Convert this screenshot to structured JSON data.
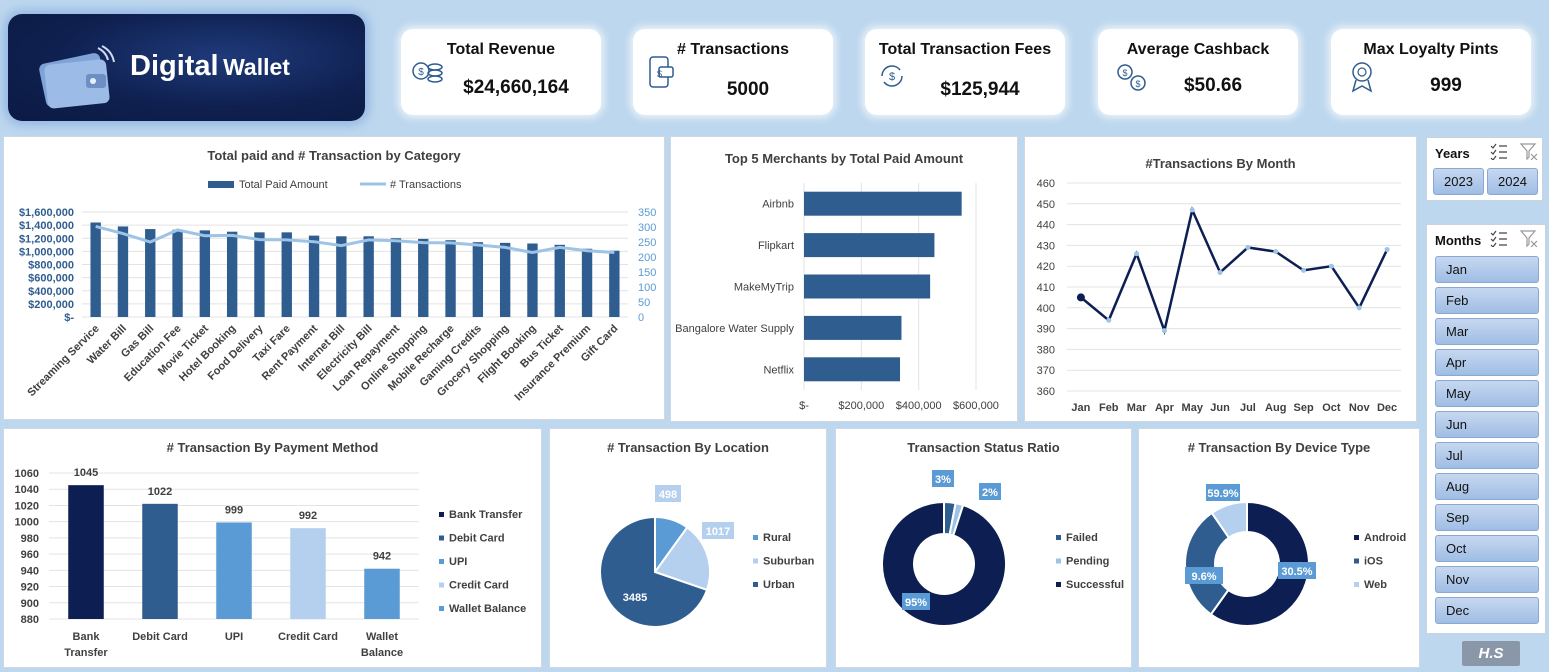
{
  "header": {
    "title_big": "Digital",
    "title_small": "Wallet"
  },
  "kpis": [
    {
      "label": "Total Revenue",
      "value": "$24,660,164",
      "icon": "coins-icon"
    },
    {
      "label": "# Transactions",
      "value": "5000",
      "icon": "mobile-payment-icon"
    },
    {
      "label": "Total Transaction Fees",
      "value": "$125,944",
      "icon": "dollar-cycle-icon"
    },
    {
      "label": "Average Cashback",
      "value": "$50.66",
      "icon": "currency-exchange-icon"
    },
    {
      "label": "Max Loyalty Pints",
      "value": "999",
      "icon": "badge-icon"
    }
  ],
  "slicers": {
    "years": {
      "title": "Years",
      "items": [
        "2023",
        "2024"
      ]
    },
    "months": {
      "title": "Months",
      "items": [
        "Jan",
        "Feb",
        "Mar",
        "Apr",
        "May",
        "Jun",
        "Jul",
        "Aug",
        "Sep",
        "Oct",
        "Nov",
        "Dec"
      ]
    }
  },
  "footer": {
    "tag": "H.S"
  },
  "chart_data": [
    {
      "type": "bar",
      "title": "Total paid and # Transaction by Category",
      "categories": [
        "Streaming Service",
        "Water Bill",
        "Gas Bill",
        "Education Fee",
        "Movie Ticket",
        "Hotel Booking",
        "Food Delivery",
        "Taxi Fare",
        "Rent Payment",
        "Internet Bill",
        "Electricity Bill",
        "Loan Repayment",
        "Online Shopping",
        "Mobile Recharge",
        "Gaming Credits",
        "Grocery Shopping",
        "Flight Booking",
        "Bus Ticket",
        "Insurance Premium",
        "Gift Card"
      ],
      "series": [
        {
          "name": "Total Paid Amount",
          "kind": "bar",
          "axis": "left",
          "color": "#2f5d8f",
          "values": [
            1440000,
            1380000,
            1340000,
            1330000,
            1320000,
            1300000,
            1290000,
            1290000,
            1240000,
            1230000,
            1230000,
            1200000,
            1190000,
            1170000,
            1140000,
            1130000,
            1120000,
            1100000,
            1040000,
            1010000
          ]
        },
        {
          "name": "# Transactions",
          "kind": "line",
          "axis": "right",
          "color": "#9dc3e6",
          "values": [
            302,
            278,
            250,
            290,
            271,
            272,
            258,
            257,
            251,
            238,
            257,
            254,
            248,
            247,
            240,
            232,
            215,
            232,
            221,
            215
          ]
        }
      ],
      "y_left": {
        "ticks": [
          "$-",
          "$200,000",
          "$400,000",
          "$600,000",
          "$800,000",
          "$1,000,000",
          "$1,200,000",
          "$1,400,000",
          "$1,600,000"
        ],
        "min": 0,
        "max": 1600000
      },
      "y_right": {
        "ticks": [
          "0",
          "50",
          "100",
          "150",
          "200",
          "250",
          "300",
          "350"
        ],
        "min": 0,
        "max": 350
      },
      "legend": "top"
    },
    {
      "type": "bar",
      "orientation": "horizontal",
      "title": "Top 5 Merchants by Total Paid Amount",
      "categories": [
        "Airbnb",
        "Flipkart",
        "MakeMyTrip",
        "Bangalore Water Supply",
        "Netflix"
      ],
      "values": [
        550000,
        455000,
        440000,
        340000,
        335000
      ],
      "x_ticks": [
        "$-",
        "$200,000",
        "$400,000",
        "$600,000"
      ],
      "xlim": [
        0,
        600000
      ]
    },
    {
      "type": "line",
      "title": "#Transactions By Month",
      "categories": [
        "Jan",
        "Feb",
        "Mar",
        "Apr",
        "May",
        "Jun",
        "Jul",
        "Aug",
        "Sep",
        "Oct",
        "Nov",
        "Dec"
      ],
      "values": [
        405,
        394,
        426,
        389,
        447,
        417,
        429,
        427,
        418,
        420,
        400,
        428
      ],
      "y_ticks": [
        "360",
        "370",
        "380",
        "390",
        "400",
        "410",
        "420",
        "430",
        "440",
        "450",
        "460"
      ],
      "ylim": [
        360,
        460
      ]
    },
    {
      "type": "bar",
      "title": "# Transaction By Payment Method",
      "categories": [
        "Bank Transfer",
        "Debit Card",
        "UPI",
        "Credit Card",
        "Wallet Balance"
      ],
      "category_lines": [
        [
          "Bank",
          "Transfer"
        ],
        [
          "Debit Card"
        ],
        [
          "UPI"
        ],
        [
          "Credit Card"
        ],
        [
          "Wallet",
          "Balance"
        ]
      ],
      "values": [
        1045,
        1022,
        999,
        992,
        942
      ],
      "colors": [
        "#0d1f52",
        "#2f5d8f",
        "#5b9bd5",
        "#b4d0ee",
        "#5b9bd5"
      ],
      "y_ticks": [
        "880",
        "900",
        "920",
        "940",
        "960",
        "980",
        "1000",
        "1020",
        "1040",
        "1060"
      ],
      "ylim": [
        880,
        1060
      ],
      "legend": "right"
    },
    {
      "type": "pie",
      "title": "# Transaction By Location",
      "labels": [
        "Rural",
        "Suburban",
        "Urban"
      ],
      "values": [
        498,
        1017,
        3485
      ],
      "colors": [
        "#5b9bd5",
        "#b4d0ee",
        "#2f5d8f"
      ]
    },
    {
      "type": "pie",
      "donut": true,
      "title": "Transaction Status Ratio",
      "labels": [
        "Failed",
        "Pending",
        "Successful"
      ],
      "values": [
        3,
        2,
        95
      ],
      "display": [
        "3%",
        "2%",
        "95%"
      ],
      "colors": [
        "#2f5d8f",
        "#9dc3e6",
        "#0d1f52"
      ]
    },
    {
      "type": "pie",
      "donut": true,
      "title": "# Transaction By  Device Type",
      "labels": [
        "Android",
        "iOS",
        "Web"
      ],
      "values": [
        59.9,
        30.5,
        9.6
      ],
      "display": [
        "59.9%",
        "30.5%",
        "9.6%"
      ],
      "colors": [
        "#0d1f52",
        "#2f5d8f",
        "#b4d0ee"
      ]
    }
  ]
}
